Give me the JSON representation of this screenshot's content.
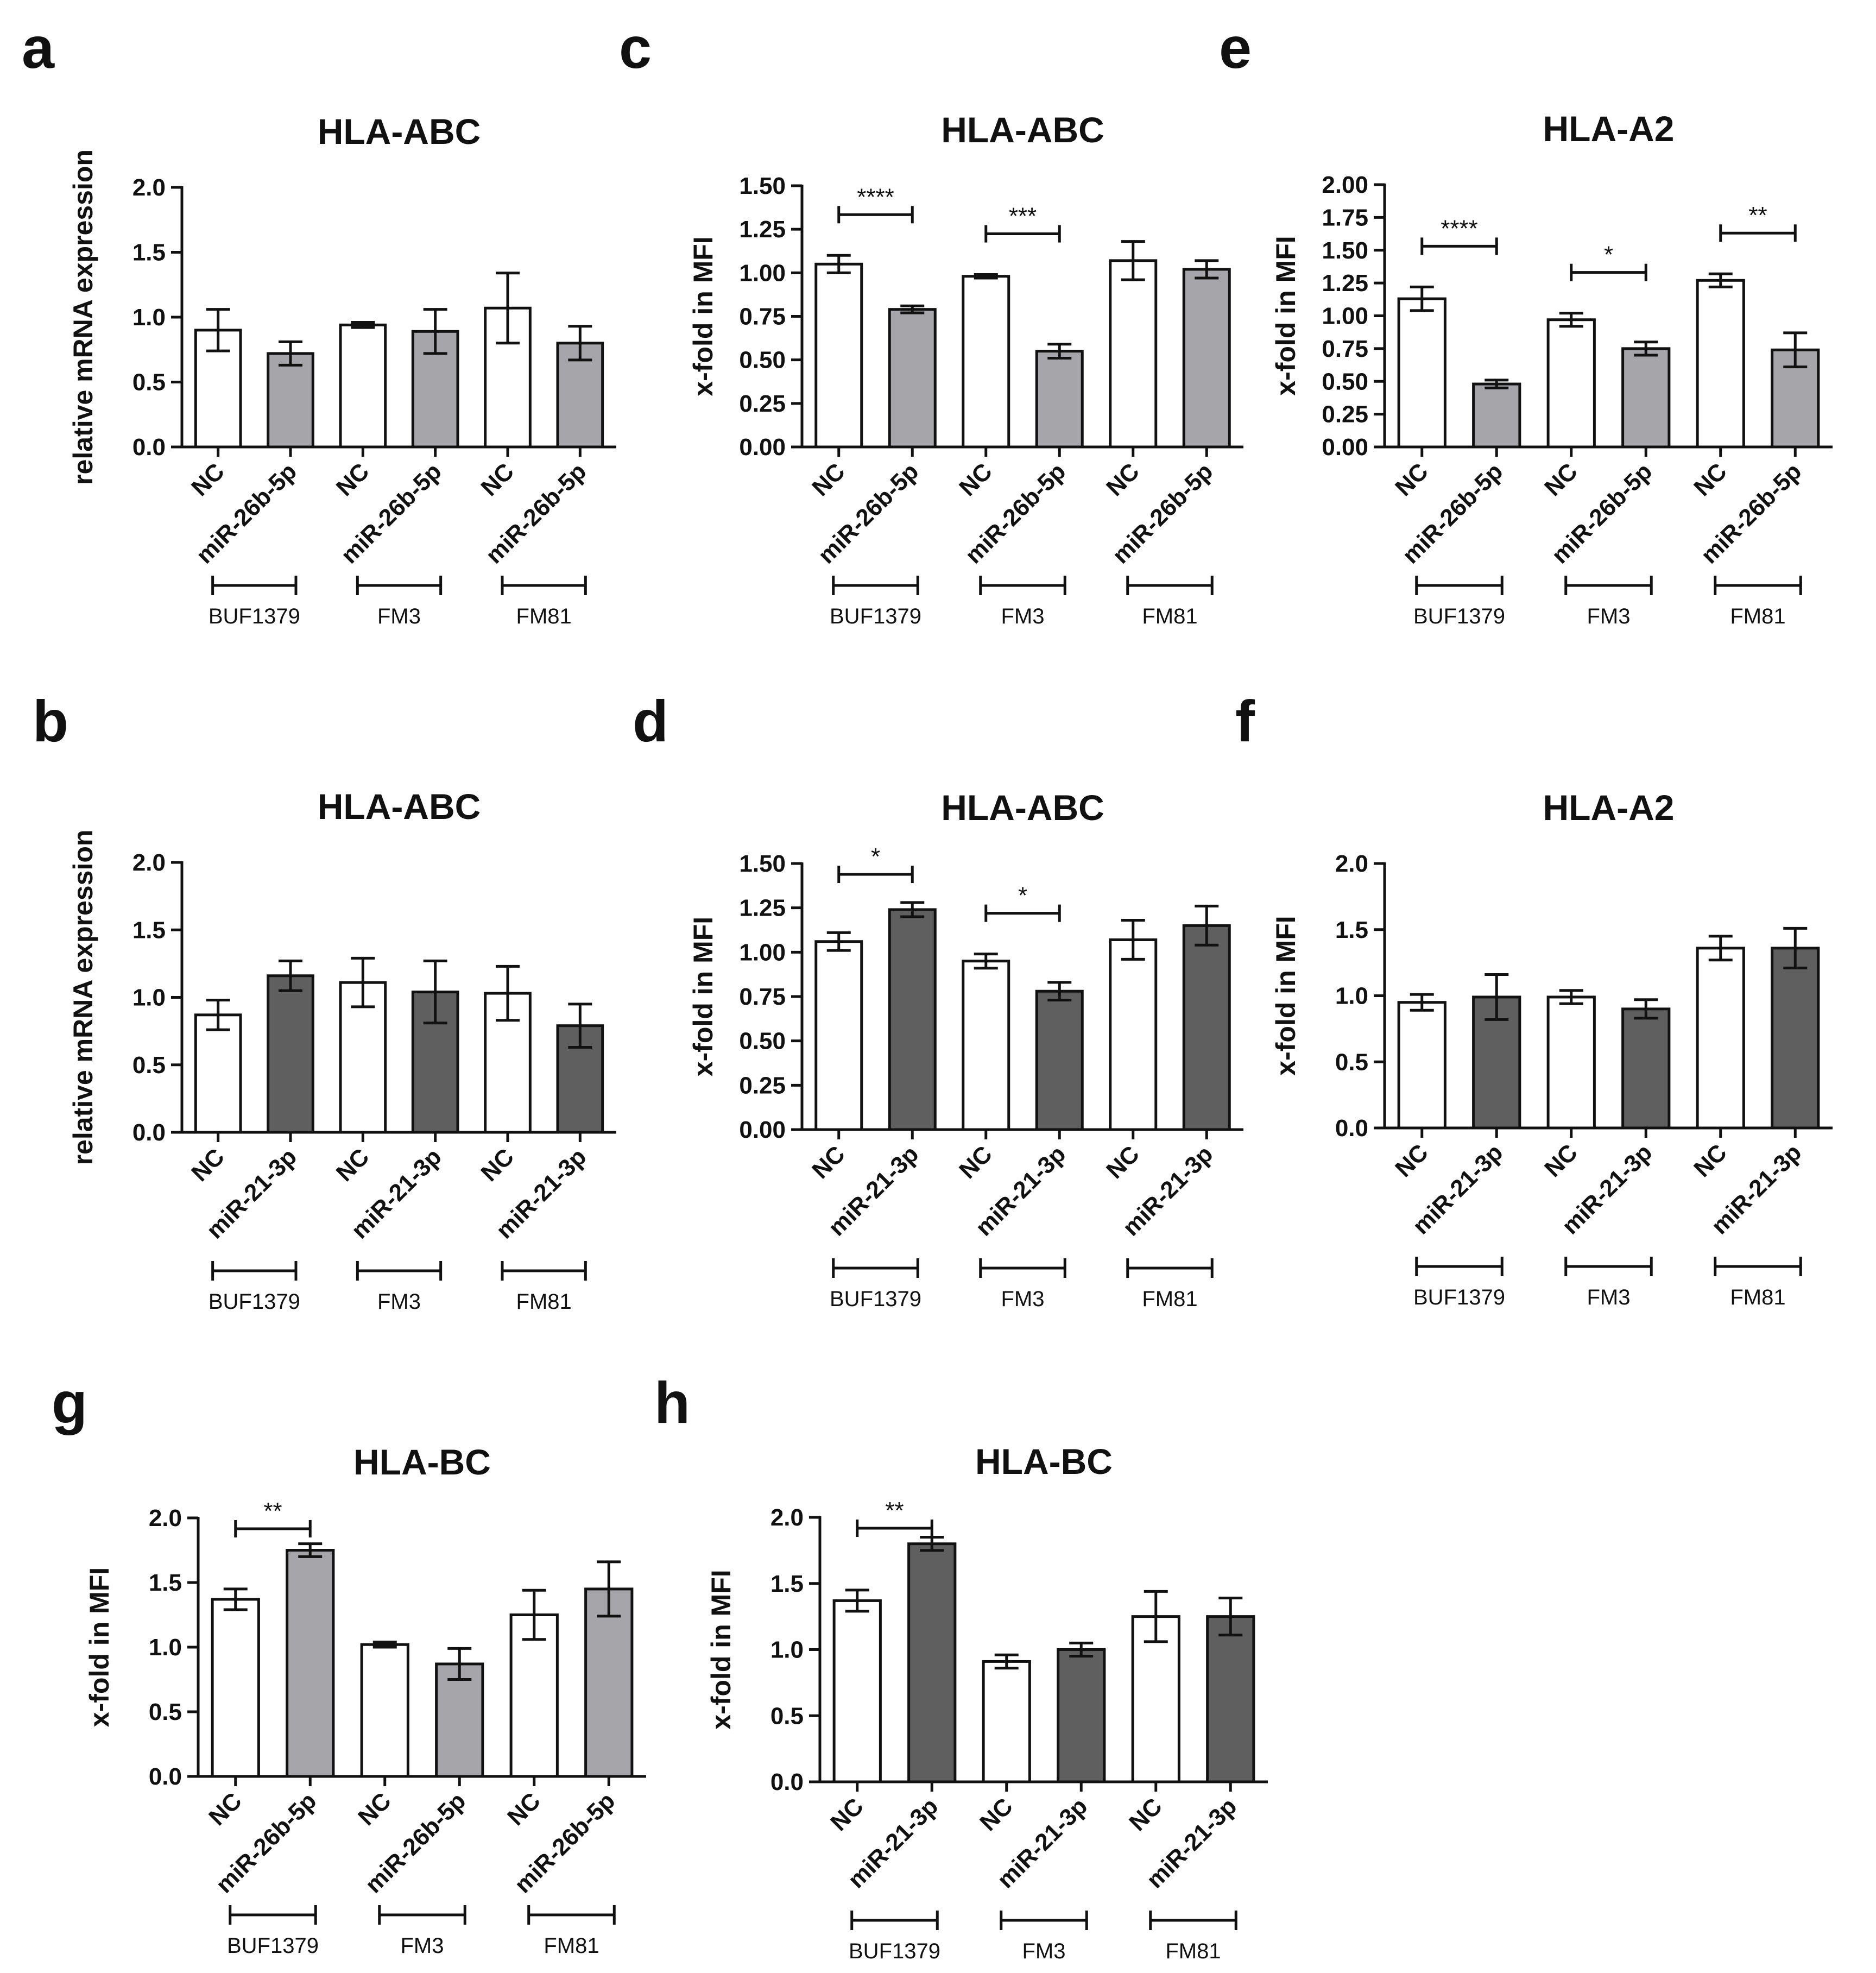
{
  "colors": {
    "nc": "#ffffff",
    "mir26": "#a6a6aa",
    "mir21": "#5f5f5f",
    "ink": "#111111"
  },
  "chart_data": [
    {
      "type": "bar",
      "panel": "a",
      "title": "HLA-ABC",
      "ylabel": "relative mRNA expression",
      "ylim": [
        0,
        2.0
      ],
      "ticks": [
        "0.0",
        "0.5",
        "1.0",
        "1.5",
        "2.0"
      ],
      "categories": [
        "NC",
        "miR-26b-5p",
        "NC",
        "miR-26b-5p",
        "NC",
        "miR-26b-5p"
      ],
      "values": [
        0.9,
        0.72,
        0.94,
        0.89,
        1.07,
        0.8
      ],
      "errors": [
        0.16,
        0.09,
        0.02,
        0.17,
        0.27,
        0.13
      ],
      "fills": [
        "nc",
        "mir26",
        "nc",
        "mir26",
        "nc",
        "mir26"
      ],
      "groups": [
        "BUF1379",
        "FM3",
        "FM81"
      ],
      "significance": []
    },
    {
      "type": "bar",
      "panel": "b",
      "title": "HLA-ABC",
      "ylabel": "relative mRNA expression",
      "ylim": [
        0,
        2.0
      ],
      "ticks": [
        "0.0",
        "0.5",
        "1.0",
        "1.5",
        "2.0"
      ],
      "categories": [
        "NC",
        "miR-21-3p",
        "NC",
        "miR-21-3p",
        "NC",
        "miR-21-3p"
      ],
      "values": [
        0.87,
        1.16,
        1.11,
        1.04,
        1.03,
        0.79
      ],
      "errors": [
        0.11,
        0.11,
        0.18,
        0.23,
        0.2,
        0.16
      ],
      "fills": [
        "nc",
        "mir21",
        "nc",
        "mir21",
        "nc",
        "mir21"
      ],
      "groups": [
        "BUF1379",
        "FM3",
        "FM81"
      ],
      "significance": []
    },
    {
      "type": "bar",
      "panel": "c",
      "title": "HLA-ABC",
      "ylabel": "x-fold in MFI",
      "ylim": [
        0,
        1.5
      ],
      "ticks": [
        "0.00",
        "0.25",
        "0.50",
        "0.75",
        "1.00",
        "1.25",
        "1.50"
      ],
      "categories": [
        "NC",
        "miR-26b-5p",
        "NC",
        "miR-26b-5p",
        "NC",
        "miR-26b-5p"
      ],
      "values": [
        1.05,
        0.79,
        0.98,
        0.55,
        1.07,
        1.02
      ],
      "errors": [
        0.05,
        0.02,
        0.01,
        0.04,
        0.11,
        0.05
      ],
      "fills": [
        "nc",
        "mir26",
        "nc",
        "mir26",
        "nc",
        "mir26"
      ],
      "groups": [
        "BUF1379",
        "FM3",
        "FM81"
      ],
      "significance": [
        {
          "from": 0,
          "to": 1,
          "label": "****"
        },
        {
          "from": 2,
          "to": 3,
          "label": "***"
        }
      ]
    },
    {
      "type": "bar",
      "panel": "d",
      "title": "HLA-ABC",
      "ylabel": "x-fold in MFI",
      "ylim": [
        0,
        1.5
      ],
      "ticks": [
        "0.00",
        "0.25",
        "0.50",
        "0.75",
        "1.00",
        "1.25",
        "1.50"
      ],
      "categories": [
        "NC",
        "miR-21-3p",
        "NC",
        "miR-21-3p",
        "NC",
        "miR-21-3p"
      ],
      "values": [
        1.06,
        1.24,
        0.95,
        0.78,
        1.07,
        1.15
      ],
      "errors": [
        0.05,
        0.04,
        0.04,
        0.05,
        0.11,
        0.11
      ],
      "fills": [
        "nc",
        "mir21",
        "nc",
        "mir21",
        "nc",
        "mir21"
      ],
      "groups": [
        "BUF1379",
        "FM3",
        "FM81"
      ],
      "significance": [
        {
          "from": 0,
          "to": 1,
          "label": "*"
        },
        {
          "from": 2,
          "to": 3,
          "label": "*"
        }
      ]
    },
    {
      "type": "bar",
      "panel": "e",
      "title": "HLA-A2",
      "ylabel": "x-fold in MFI",
      "ylim": [
        0,
        2.0
      ],
      "ticks": [
        "0.00",
        "0.25",
        "0.50",
        "0.75",
        "1.00",
        "1.25",
        "1.50",
        "1.75",
        "2.00"
      ],
      "categories": [
        "NC",
        "miR-26b-5p",
        "NC",
        "miR-26b-5p",
        "NC",
        "miR-26b-5p"
      ],
      "values": [
        1.13,
        0.48,
        0.97,
        0.75,
        1.27,
        0.74
      ],
      "errors": [
        0.09,
        0.03,
        0.05,
        0.05,
        0.05,
        0.13
      ],
      "fills": [
        "nc",
        "mir26",
        "nc",
        "mir26",
        "nc",
        "mir26"
      ],
      "groups": [
        "BUF1379",
        "FM3",
        "FM81"
      ],
      "significance": [
        {
          "from": 0,
          "to": 1,
          "label": "****"
        },
        {
          "from": 2,
          "to": 3,
          "label": "*"
        },
        {
          "from": 4,
          "to": 5,
          "label": "**"
        }
      ]
    },
    {
      "type": "bar",
      "panel": "f",
      "title": "HLA-A2",
      "ylabel": "x-fold in MFI",
      "ylim": [
        0,
        2.0
      ],
      "ticks": [
        "0.0",
        "0.5",
        "1.0",
        "1.5",
        "2.0"
      ],
      "categories": [
        "NC",
        "miR-21-3p",
        "NC",
        "miR-21-3p",
        "NC",
        "miR-21-3p"
      ],
      "values": [
        0.95,
        0.99,
        0.99,
        0.9,
        1.36,
        1.36
      ],
      "errors": [
        0.06,
        0.17,
        0.05,
        0.07,
        0.09,
        0.15
      ],
      "fills": [
        "nc",
        "mir21",
        "nc",
        "mir21",
        "nc",
        "mir21"
      ],
      "groups": [
        "BUF1379",
        "FM3",
        "FM81"
      ],
      "significance": []
    },
    {
      "type": "bar",
      "panel": "g",
      "title": "HLA-BC",
      "ylabel": "x-fold in MFI",
      "ylim": [
        0,
        2.0
      ],
      "ticks": [
        "0.0",
        "0.5",
        "1.0",
        "1.5",
        "2.0"
      ],
      "categories": [
        "NC",
        "miR-26b-5p",
        "NC",
        "miR-26b-5p",
        "NC",
        "miR-26b-5p"
      ],
      "values": [
        1.37,
        1.75,
        1.02,
        0.87,
        1.25,
        1.45
      ],
      "errors": [
        0.08,
        0.05,
        0.02,
        0.12,
        0.19,
        0.21
      ],
      "fills": [
        "nc",
        "mir26",
        "nc",
        "mir26",
        "nc",
        "mir26"
      ],
      "groups": [
        "BUF1379",
        "FM3",
        "FM81"
      ],
      "significance": [
        {
          "from": 0,
          "to": 1,
          "label": "**"
        }
      ]
    },
    {
      "type": "bar",
      "panel": "h",
      "title": "HLA-BC",
      "ylabel": "x-fold in MFI",
      "ylim": [
        0,
        2.0
      ],
      "ticks": [
        "0.0",
        "0.5",
        "1.0",
        "1.5",
        "2.0"
      ],
      "categories": [
        "NC",
        "miR-21-3p",
        "NC",
        "miR-21-3p",
        "NC",
        "miR-21-3p"
      ],
      "values": [
        1.37,
        1.8,
        0.91,
        1.0,
        1.25,
        1.25
      ],
      "errors": [
        0.08,
        0.05,
        0.05,
        0.05,
        0.19,
        0.14
      ],
      "fills": [
        "nc",
        "mir21",
        "nc",
        "mir21",
        "nc",
        "mir21"
      ],
      "groups": [
        "BUF1379",
        "FM3",
        "FM81"
      ],
      "significance": [
        {
          "from": 0,
          "to": 1,
          "label": "**"
        }
      ]
    }
  ]
}
